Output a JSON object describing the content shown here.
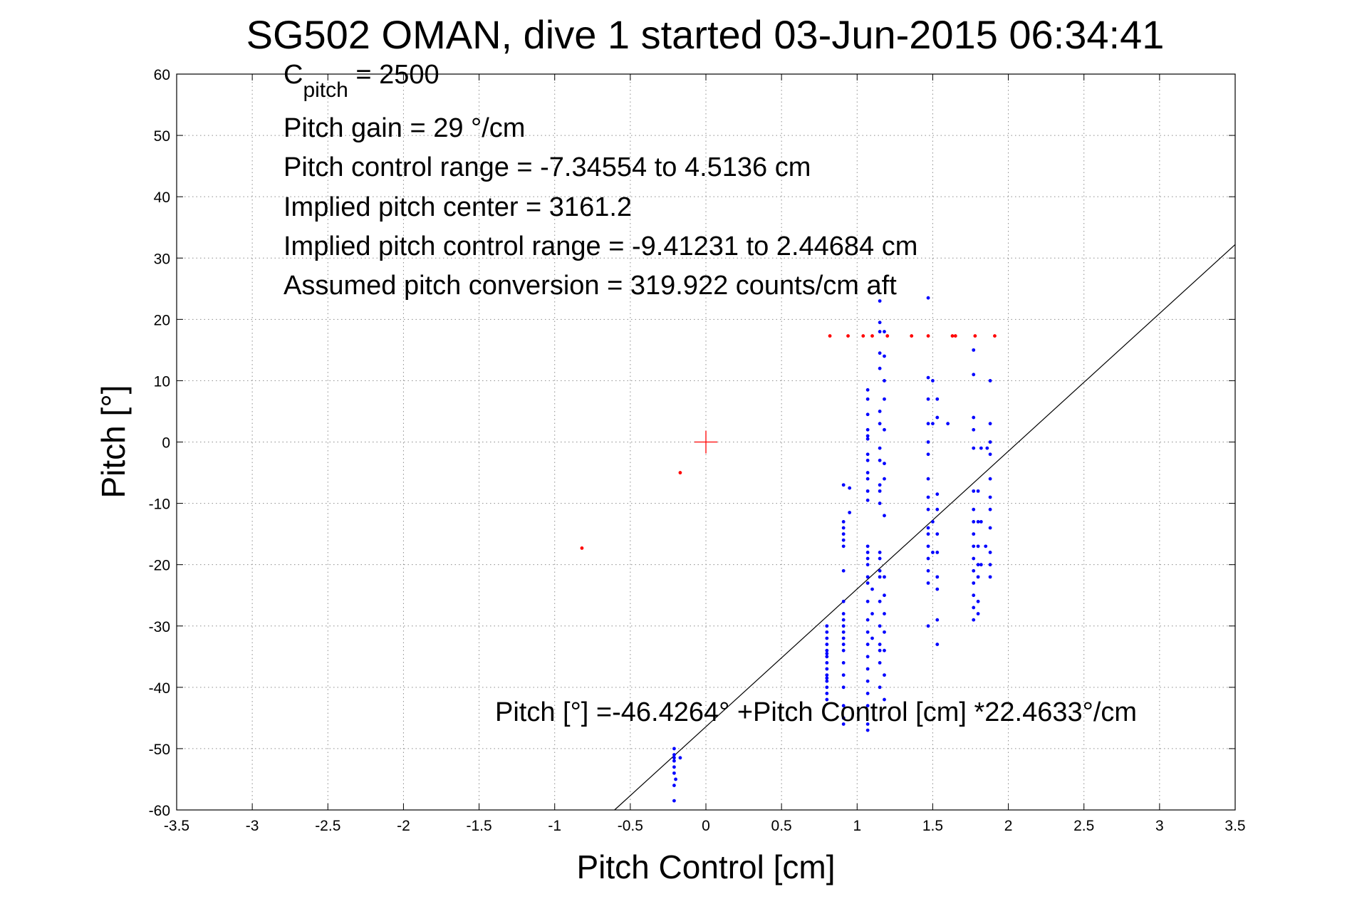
{
  "chart_data": {
    "type": "scatter",
    "title": "SG502 OMAN, dive 1 started 03-Jun-2015 06:34:41",
    "xlabel": "Pitch Control [cm]",
    "ylabel": "Pitch [°]",
    "xlim": [
      -3.5,
      3.5
    ],
    "ylim": [
      -60,
      60
    ],
    "xticks": [
      -3.5,
      -3,
      -2.5,
      -2,
      -1.5,
      -1,
      -0.5,
      0,
      0.5,
      1,
      1.5,
      2,
      2.5,
      3,
      3.5
    ],
    "yticks": [
      -60,
      -50,
      -40,
      -30,
      -20,
      -10,
      0,
      10,
      20,
      30,
      40,
      50,
      60
    ],
    "xtick_labels": [
      "-3.5",
      "-3",
      "-2.5",
      "-2",
      "-1.5",
      "-1",
      "-0.5",
      "0",
      "0.5",
      "1",
      "1.5",
      "2",
      "2.5",
      "3",
      "3.5"
    ],
    "ytick_labels": [
      "-60",
      "-50",
      "-40",
      "-30",
      "-20",
      "-10",
      "0",
      "10",
      "20",
      "30",
      "40",
      "50",
      "60"
    ],
    "grid": true,
    "annotations": [
      {
        "base": "C",
        "sub": "pitch",
        "rest": " = 2500"
      },
      {
        "text": "Pitch gain = 29 °/cm"
      },
      {
        "text": "Pitch control range = -7.34554 to 4.5136 cm"
      },
      {
        "text": "Implied pitch center = 3161.2"
      },
      {
        "text": "Implied pitch control range = -9.41231 to 2.44684 cm"
      },
      {
        "text": "Assumed pitch conversion = 319.922 counts/cm aft"
      }
    ],
    "fit_equation": "Pitch [°] =-46.4264° +Pitch Control [cm] *22.4633°/cm",
    "fit": {
      "intercept": -46.4264,
      "slope": 22.4633,
      "color": "#000000"
    },
    "center_marker": {
      "x": 0,
      "y": 0,
      "color": "#ff0000"
    },
    "colors": {
      "blue": "#0000ff",
      "red": "#ff0000"
    },
    "series": [
      {
        "color": "#0000ff",
        "points": [
          [
            -0.21,
            -50
          ],
          [
            -0.21,
            -51
          ],
          [
            -0.21,
            -52
          ],
          [
            -0.21,
            -53
          ],
          [
            -0.21,
            -54
          ],
          [
            -0.21,
            -56
          ],
          [
            -0.21,
            -58.5
          ],
          [
            -0.21,
            -51.5
          ],
          [
            -0.2,
            -55
          ],
          [
            -0.17,
            -51.5
          ],
          [
            0.8,
            -30
          ],
          [
            0.8,
            -31
          ],
          [
            0.8,
            -32
          ],
          [
            0.8,
            -33
          ],
          [
            0.8,
            -34
          ],
          [
            0.8,
            -35
          ],
          [
            0.8,
            -36
          ],
          [
            0.8,
            -37
          ],
          [
            0.8,
            -38
          ],
          [
            0.8,
            -39
          ],
          [
            0.8,
            -40
          ],
          [
            0.8,
            -41
          ],
          [
            0.8,
            -42
          ],
          [
            0.8,
            -34.5
          ],
          [
            0.8,
            -38.5
          ],
          [
            0.91,
            -7
          ],
          [
            0.91,
            -13
          ],
          [
            0.91,
            -14
          ],
          [
            0.91,
            -15
          ],
          [
            0.91,
            -16
          ],
          [
            0.91,
            -17
          ],
          [
            0.91,
            -21
          ],
          [
            0.91,
            -26
          ],
          [
            0.91,
            -28
          ],
          [
            0.91,
            -29
          ],
          [
            0.91,
            -30
          ],
          [
            0.91,
            -31
          ],
          [
            0.91,
            -32
          ],
          [
            0.91,
            -33
          ],
          [
            0.91,
            -34
          ],
          [
            0.91,
            -36
          ],
          [
            0.91,
            -38
          ],
          [
            0.91,
            -40
          ],
          [
            0.91,
            -43
          ],
          [
            0.91,
            -45
          ],
          [
            0.91,
            -46
          ],
          [
            0.95,
            -7.5
          ],
          [
            0.95,
            -11.5
          ],
          [
            1.07,
            8.5
          ],
          [
            1.07,
            7
          ],
          [
            1.07,
            4.5
          ],
          [
            1.07,
            2
          ],
          [
            1.07,
            1
          ],
          [
            1.07,
            0.5
          ],
          [
            1.07,
            -2
          ],
          [
            1.07,
            -3
          ],
          [
            1.07,
            -5
          ],
          [
            1.07,
            -6
          ],
          [
            1.07,
            -8
          ],
          [
            1.07,
            -9.5
          ],
          [
            1.07,
            -17
          ],
          [
            1.07,
            -18
          ],
          [
            1.07,
            -19
          ],
          [
            1.07,
            -20
          ],
          [
            1.07,
            -22
          ],
          [
            1.07,
            -23
          ],
          [
            1.07,
            -26
          ],
          [
            1.07,
            -29
          ],
          [
            1.07,
            -31
          ],
          [
            1.07,
            -33
          ],
          [
            1.07,
            -35
          ],
          [
            1.07,
            -37
          ],
          [
            1.07,
            -39
          ],
          [
            1.07,
            -41
          ],
          [
            1.07,
            -43
          ],
          [
            1.07,
            -46
          ],
          [
            1.07,
            -47
          ],
          [
            1.1,
            -24
          ],
          [
            1.1,
            -28
          ],
          [
            1.1,
            -32
          ],
          [
            1.15,
            23
          ],
          [
            1.15,
            19.5
          ],
          [
            1.15,
            18
          ],
          [
            1.15,
            14.5
          ],
          [
            1.15,
            12
          ],
          [
            1.15,
            5
          ],
          [
            1.15,
            3
          ],
          [
            1.15,
            -1
          ],
          [
            1.15,
            -3
          ],
          [
            1.15,
            -7
          ],
          [
            1.15,
            -8
          ],
          [
            1.15,
            -10
          ],
          [
            1.15,
            -18
          ],
          [
            1.15,
            -19
          ],
          [
            1.15,
            -21
          ],
          [
            1.15,
            -22
          ],
          [
            1.15,
            -26
          ],
          [
            1.15,
            -30
          ],
          [
            1.15,
            -33
          ],
          [
            1.15,
            -34
          ],
          [
            1.15,
            -36
          ],
          [
            1.15,
            -40
          ],
          [
            1.18,
            18
          ],
          [
            1.18,
            14
          ],
          [
            1.18,
            10
          ],
          [
            1.18,
            7
          ],
          [
            1.18,
            2
          ],
          [
            1.18,
            -3.5
          ],
          [
            1.18,
            -6
          ],
          [
            1.18,
            -12
          ],
          [
            1.18,
            -22
          ],
          [
            1.18,
            -25
          ],
          [
            1.18,
            -28
          ],
          [
            1.18,
            -31
          ],
          [
            1.18,
            -34
          ],
          [
            1.18,
            -38
          ],
          [
            1.18,
            -42
          ],
          [
            1.47,
            23.5
          ],
          [
            1.47,
            10.5
          ],
          [
            1.47,
            7
          ],
          [
            1.47,
            3
          ],
          [
            1.47,
            0
          ],
          [
            1.47,
            -2
          ],
          [
            1.47,
            -6
          ],
          [
            1.47,
            -9
          ],
          [
            1.47,
            -11
          ],
          [
            1.47,
            -14
          ],
          [
            1.47,
            -15
          ],
          [
            1.47,
            -17
          ],
          [
            1.47,
            -19
          ],
          [
            1.47,
            -21
          ],
          [
            1.47,
            -23
          ],
          [
            1.47,
            -30
          ],
          [
            1.5,
            10
          ],
          [
            1.5,
            3
          ],
          [
            1.5,
            -13
          ],
          [
            1.5,
            -18
          ],
          [
            1.53,
            7
          ],
          [
            1.53,
            4
          ],
          [
            1.53,
            -8.5
          ],
          [
            1.53,
            -11
          ],
          [
            1.53,
            -15
          ],
          [
            1.53,
            -18
          ],
          [
            1.53,
            -22
          ],
          [
            1.53,
            -24
          ],
          [
            1.53,
            -29
          ],
          [
            1.53,
            -33
          ],
          [
            1.6,
            3
          ],
          [
            1.77,
            15
          ],
          [
            1.77,
            11
          ],
          [
            1.77,
            4
          ],
          [
            1.77,
            2
          ],
          [
            1.77,
            -1
          ],
          [
            1.77,
            -8
          ],
          [
            1.77,
            -11
          ],
          [
            1.77,
            -13
          ],
          [
            1.77,
            -15
          ],
          [
            1.77,
            -17
          ],
          [
            1.77,
            -19
          ],
          [
            1.77,
            -21
          ],
          [
            1.77,
            -23
          ],
          [
            1.77,
            -25
          ],
          [
            1.77,
            -27
          ],
          [
            1.77,
            -29
          ],
          [
            1.8,
            -8
          ],
          [
            1.8,
            -13
          ],
          [
            1.8,
            -17
          ],
          [
            1.8,
            -20
          ],
          [
            1.8,
            -22
          ],
          [
            1.8,
            -26
          ],
          [
            1.8,
            -28
          ],
          [
            1.82,
            -1
          ],
          [
            1.82,
            -13
          ],
          [
            1.82,
            -20
          ],
          [
            1.88,
            10
          ],
          [
            1.88,
            3
          ],
          [
            1.88,
            0
          ],
          [
            1.88,
            -2
          ],
          [
            1.88,
            -6
          ],
          [
            1.88,
            -9
          ],
          [
            1.88,
            -11
          ],
          [
            1.88,
            -14
          ],
          [
            1.88,
            -18
          ],
          [
            1.88,
            -20
          ],
          [
            1.88,
            -22
          ],
          [
            1.86,
            -1
          ],
          [
            1.85,
            -17
          ]
        ]
      },
      {
        "color": "#ff0000",
        "points": [
          [
            -0.82,
            -17.3
          ],
          [
            -0.17,
            -5
          ],
          [
            0.82,
            17.3
          ],
          [
            0.94,
            17.3
          ],
          [
            1.04,
            17.3
          ],
          [
            1.1,
            17.3
          ],
          [
            1.2,
            17.3
          ],
          [
            1.36,
            17.3
          ],
          [
            1.47,
            17.3
          ],
          [
            1.63,
            17.3
          ],
          [
            1.65,
            17.3
          ],
          [
            1.78,
            17.3
          ],
          [
            1.91,
            17.3
          ]
        ]
      }
    ]
  }
}
